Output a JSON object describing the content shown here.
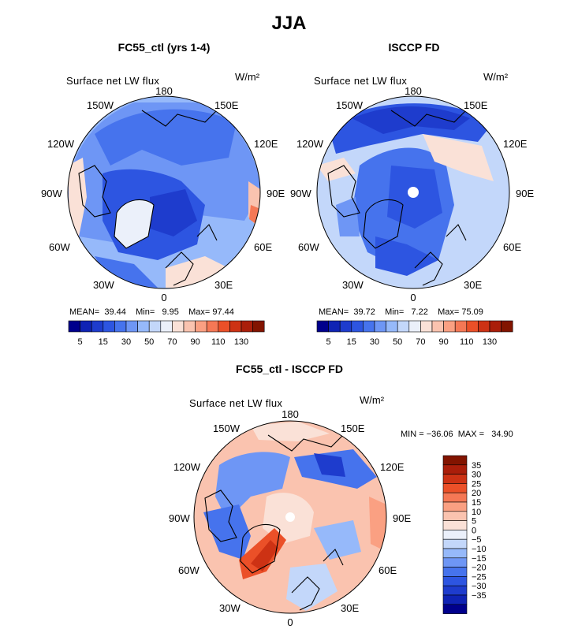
{
  "figure_title": "JJA",
  "colors": {
    "fill_scale_1": [
      "#00008c",
      "#0f23b4",
      "#1e3ccd",
      "#2d55e1",
      "#4673ed",
      "#6e96f5",
      "#96b9fa",
      "#c3d7fa",
      "#ebf0fa",
      "#fae1d7",
      "#fac3af",
      "#faa082",
      "#f57855",
      "#eb5028",
      "#cd3214",
      "#aa1e0a",
      "#821400"
    ],
    "fill_scale_diff": [
      "#00008c",
      "#0f23b4",
      "#1e3ccd",
      "#2d55e1",
      "#4673ed",
      "#6e96f5",
      "#96b9fa",
      "#c3d7fa",
      "#ebf0fa",
      "#fae1d7",
      "#fac3af",
      "#faa082",
      "#f57855",
      "#eb5028",
      "#cd3214",
      "#aa1e0a",
      "#821400"
    ]
  },
  "panels": [
    {
      "title": "FC55_ctl (yrs 1-4)",
      "variable": "Surface net LW flux",
      "units": "W/m²",
      "lon_labels": {
        "top": "180",
        "tl": "150W",
        "tr": "150E",
        "l1": "120W",
        "r1": "120E",
        "l2": "90W",
        "r2": "90E",
        "l3": "60W",
        "r3": "60E",
        "bl": "30W",
        "br": "30E",
        "bottom": "0"
      },
      "stats": {
        "mean_label": "MEAN=",
        "mean": "39.44",
        "min_label": "Min=",
        "min": "9.95",
        "max_label": "Max=",
        "max": "97.44"
      },
      "colorbar_ticks": [
        "5",
        "15",
        "30",
        "50",
        "70",
        "90",
        "110",
        "130"
      ]
    },
    {
      "title": "ISCCP FD",
      "variable": "Surface net LW flux",
      "units": "W/m²",
      "lon_labels": {
        "top": "180",
        "tl": "150W",
        "tr": "150E",
        "l1": "120W",
        "r1": "120E",
        "l2": "90W",
        "r2": "90E",
        "l3": "60W",
        "r3": "60E",
        "bl": "30W",
        "br": "30E",
        "bottom": "0"
      },
      "stats": {
        "mean_label": "MEAN=",
        "mean": "39.72",
        "min_label": "Min=",
        "min": "7.22",
        "max_label": "Max=",
        "max": "75.09"
      },
      "colorbar_ticks": [
        "5",
        "15",
        "30",
        "50",
        "70",
        "90",
        "110",
        "130"
      ]
    },
    {
      "title": "FC55_ctl - ISCCP FD",
      "variable": "Surface net LW flux",
      "units": "W/m²",
      "lon_labels": {
        "top": "180",
        "tl": "150W",
        "tr": "150E",
        "l1": "120W",
        "r1": "120E",
        "l2": "90W",
        "r2": "90E",
        "l3": "60W",
        "r3": "60E",
        "bl": "30W",
        "br": "30E",
        "bottom": "0"
      },
      "stats_text": "MIN = −36.06  MAX =   34.90",
      "colorbar_ticks": [
        "35",
        "30",
        "25",
        "20",
        "15",
        "10",
        "5",
        "0",
        "−5",
        "−10",
        "−15",
        "−20",
        "−25",
        "−30",
        "−35"
      ]
    }
  ]
}
